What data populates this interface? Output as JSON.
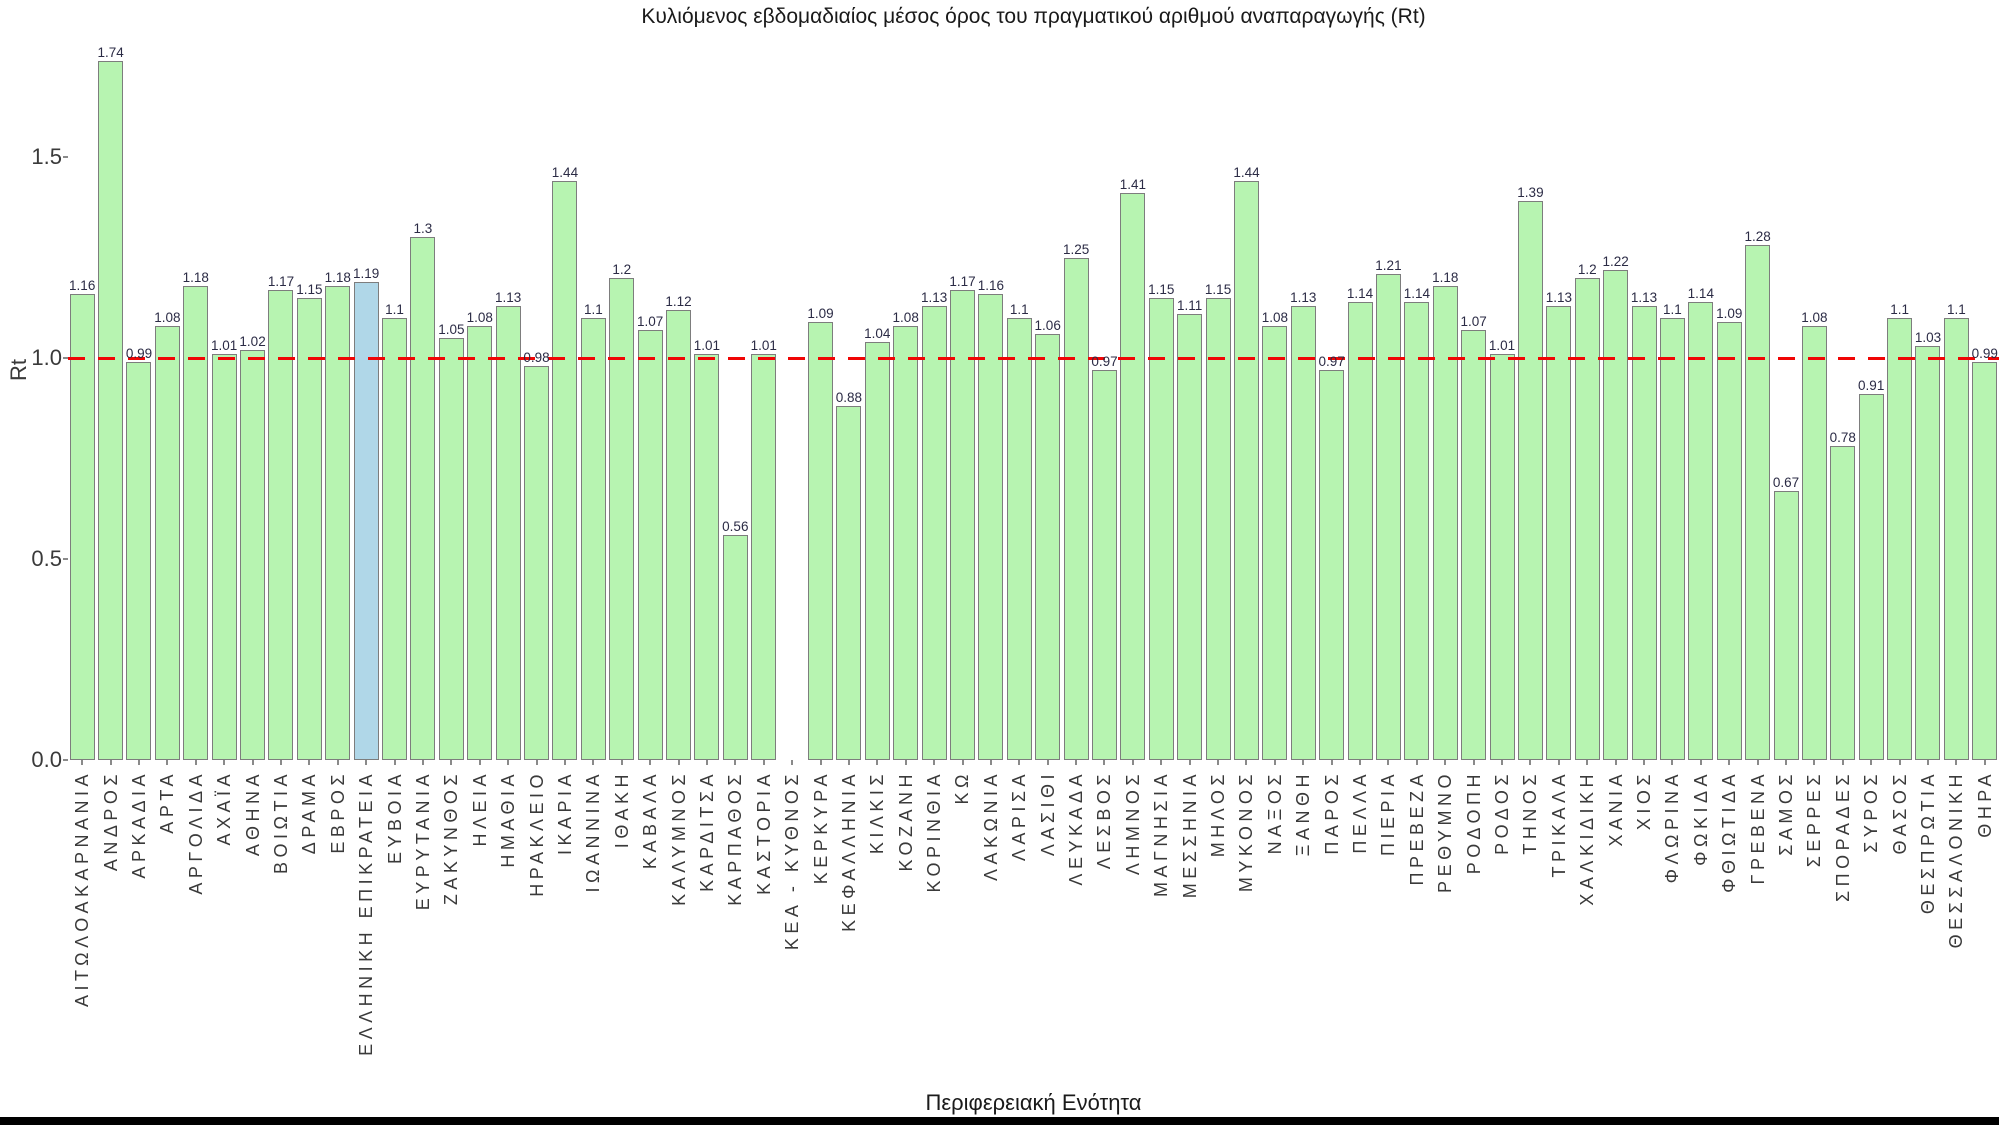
{
  "title": "Κυλιόμενος εβδομαδιαίος μέσος όρος του πραγματικού αριθμού αναπαραγωγής (Rt)",
  "ylabel": "Rt",
  "xlabel": "Περιφερειακή Ενότητα",
  "colors": {
    "bar_fill": "#b7f4b1",
    "highlight_fill": "#b0d7e8",
    "bar_border": "#7d7d7d",
    "reference_line": "#f00505",
    "value_label": "#2b2b45",
    "axis_text": "#3a3a3a"
  },
  "chart_data": {
    "type": "bar",
    "title": "Κυλιόμενος εβδομαδιαίος μέσος όρος του πραγματικού αριθμού αναπαραγωγής (Rt)",
    "xlabel": "Περιφερειακή Ενότητα",
    "ylabel": "Rt",
    "ylim": [
      0,
      1.8
    ],
    "yticks": [
      "0.0",
      "0.5",
      "1.0",
      "1.5"
    ],
    "reference_line_y": 1.0,
    "grid": false,
    "legend": false,
    "highlight_category": "ΕΛΛΗΝΙΚΗ ΕΠΙΚΡΑΤΕΙΑ",
    "categories": [
      "ΑΙΤΩΛΟΑΚΑΡΝΑΝΙΑ",
      "ΑΝΔΡΟΣ",
      "ΑΡΚΑΔΙΑ",
      "ΑΡΤΑ",
      "ΑΡΓΟΛΙΔΑ",
      "ΑΧΑΪΑ",
      "ΑΘΗΝΑ",
      "ΒΟΙΩΤΙΑ",
      "ΔΡΑΜΑ",
      "ΕΒΡΟΣ",
      "ΕΛΛΗΝΙΚΗ ΕΠΙΚΡΑΤΕΙΑ",
      "ΕΥΒΟΙΑ",
      "ΕΥΡΥΤΑΝΙΑ",
      "ΖΑΚΥΝΘΟΣ",
      "ΗΛΕΙΑ",
      "ΗΜΑΘΙΑ",
      "ΗΡΑΚΛΕΙΟ",
      "ΙΚΑΡΙΑ",
      "ΙΩΑΝΝΙΝΑ",
      "ΙΘΑΚΗ",
      "ΚΑΒΑΛΑ",
      "ΚΑΛΥΜΝΟΣ",
      "ΚΑΡΔΙΤΣΑ",
      "ΚΑΡΠΑΘΟΣ",
      "ΚΑΣΤΟΡΙΑ",
      "ΚΕΑ - ΚΥΘΝΟΣ",
      "ΚΕΡΚΥΡΑ",
      "ΚΕΦΑΛΛΗΝΙΑ",
      "ΚΙΛΚΙΣ",
      "ΚΟΖΑΝΗ",
      "ΚΟΡΙΝΘΙΑ",
      "ΚΩ",
      "ΛΑΚΩΝΙΑ",
      "ΛΑΡΙΣΑ",
      "ΛΑΣΙΘΙ",
      "ΛΕΥΚΑΔΑ",
      "ΛΕΣΒΟΣ",
      "ΛΗΜΝΟΣ",
      "ΜΑΓΝΗΣΙΑ",
      "ΜΕΣΣΗΝΙΑ",
      "ΜΗΛΟΣ",
      "ΜΥΚΟΝΟΣ",
      "ΝΑΞΟΣ",
      "ΞΑΝΘΗ",
      "ΠΑΡΟΣ",
      "ΠΕΛΛΑ",
      "ΠΙΕΡΙΑ",
      "ΠΡΕΒΕΖΑ",
      "ΡΕΘΥΜΝΟ",
      "ΡΟΔΟΠΗ",
      "ΡΟΔΟΣ",
      "ΤΗΝΟΣ",
      "ΤΡΙΚΑΛΑ",
      "ΧΑΛΚΙΔΙΚΗ",
      "ΧΑΝΙΑ",
      "ΧΙΟΣ",
      "ΦΛΩΡΙΝΑ",
      "ΦΩΚΙΔΑ",
      "ΦΘΙΩΤΙΔΑ",
      "ΓΡΕΒΕΝΑ",
      "ΣΑΜΟΣ",
      "ΣΕΡΡΕΣ",
      "ΣΠΟΡΑΔΕΣ",
      "ΣΥΡΟΣ",
      "ΘΑΣΟΣ",
      "ΘΕΣΠΡΩΤΙΑ",
      "ΘΕΣΣΑΛΟΝΙΚΗ",
      "ΘΗΡΑ"
    ],
    "values": [
      1.16,
      1.74,
      0.99,
      1.08,
      1.18,
      1.01,
      1.02,
      1.17,
      1.15,
      1.18,
      1.19,
      1.1,
      1.3,
      1.05,
      1.08,
      1.13,
      0.98,
      1.44,
      1.1,
      1.2,
      1.07,
      1.12,
      1.01,
      0.56,
      1.01,
      null,
      1.09,
      0.88,
      1.04,
      1.08,
      1.13,
      1.17,
      1.16,
      1.1,
      1.06,
      1.25,
      0.97,
      1.41,
      1.15,
      1.11,
      1.15,
      1.44,
      1.08,
      1.13,
      0.97,
      1.14,
      1.21,
      1.14,
      1.18,
      1.07,
      1.01,
      1.39,
      1.13,
      1.2,
      1.22,
      1.13,
      1.1,
      1.14,
      1.09,
      1.28,
      0.67,
      1.08,
      0.78,
      0.91,
      1.1,
      1.03,
      1.1,
      0.99
    ]
  }
}
